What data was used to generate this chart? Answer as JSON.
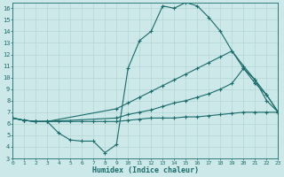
{
  "xlabel": "Humidex (Indice chaleur)",
  "bg_color": "#cce8e8",
  "line_color": "#1a6b6b",
  "grid_color": "#b8d8d8",
  "xlim": [
    0,
    23
  ],
  "ylim": [
    3,
    16.5
  ],
  "xticks": [
    0,
    1,
    2,
    3,
    4,
    5,
    6,
    7,
    8,
    9,
    10,
    11,
    12,
    13,
    14,
    15,
    16,
    17,
    18,
    19,
    20,
    21,
    22,
    23
  ],
  "yticks": [
    3,
    4,
    5,
    6,
    7,
    8,
    9,
    10,
    11,
    12,
    13,
    14,
    15,
    16
  ],
  "line1_x": [
    0,
    1,
    2,
    3,
    4,
    5,
    6,
    7,
    8,
    9,
    10,
    11,
    12,
    13,
    14,
    15,
    16,
    17,
    18,
    19,
    20,
    21,
    22,
    23
  ],
  "line1_y": [
    6.5,
    6.3,
    6.2,
    6.2,
    5.2,
    4.6,
    4.5,
    4.5,
    3.5,
    4.2,
    10.8,
    13.2,
    14.0,
    16.2,
    16.0,
    16.5,
    16.2,
    15.2,
    14.0,
    12.3,
    10.8,
    9.8,
    8.5,
    7.0
  ],
  "line2_x": [
    0,
    1,
    2,
    3,
    9,
    10,
    11,
    12,
    13,
    14,
    15,
    16,
    17,
    18,
    19,
    20,
    21,
    22,
    23
  ],
  "line2_y": [
    6.5,
    6.3,
    6.2,
    6.2,
    7.3,
    7.8,
    8.3,
    8.8,
    9.3,
    9.8,
    10.3,
    10.8,
    11.3,
    11.8,
    12.3,
    11.0,
    9.8,
    8.0,
    7.0
  ],
  "line3_x": [
    0,
    1,
    2,
    3,
    9,
    10,
    11,
    12,
    13,
    14,
    15,
    16,
    17,
    18,
    19,
    20,
    21,
    22,
    23
  ],
  "line3_y": [
    6.5,
    6.3,
    6.2,
    6.2,
    6.5,
    6.8,
    7.0,
    7.2,
    7.5,
    7.8,
    8.0,
    8.3,
    8.6,
    9.0,
    9.5,
    10.8,
    9.5,
    8.5,
    7.0
  ],
  "line4_x": [
    0,
    1,
    2,
    3,
    4,
    5,
    6,
    7,
    8,
    9,
    10,
    11,
    12,
    13,
    14,
    15,
    16,
    17,
    18,
    19,
    20,
    21,
    22,
    23
  ],
  "line4_y": [
    6.5,
    6.3,
    6.2,
    6.2,
    6.2,
    6.2,
    6.2,
    6.2,
    6.2,
    6.2,
    6.3,
    6.4,
    6.5,
    6.5,
    6.5,
    6.6,
    6.6,
    6.7,
    6.8,
    6.9,
    7.0,
    7.0,
    7.0,
    7.0
  ]
}
